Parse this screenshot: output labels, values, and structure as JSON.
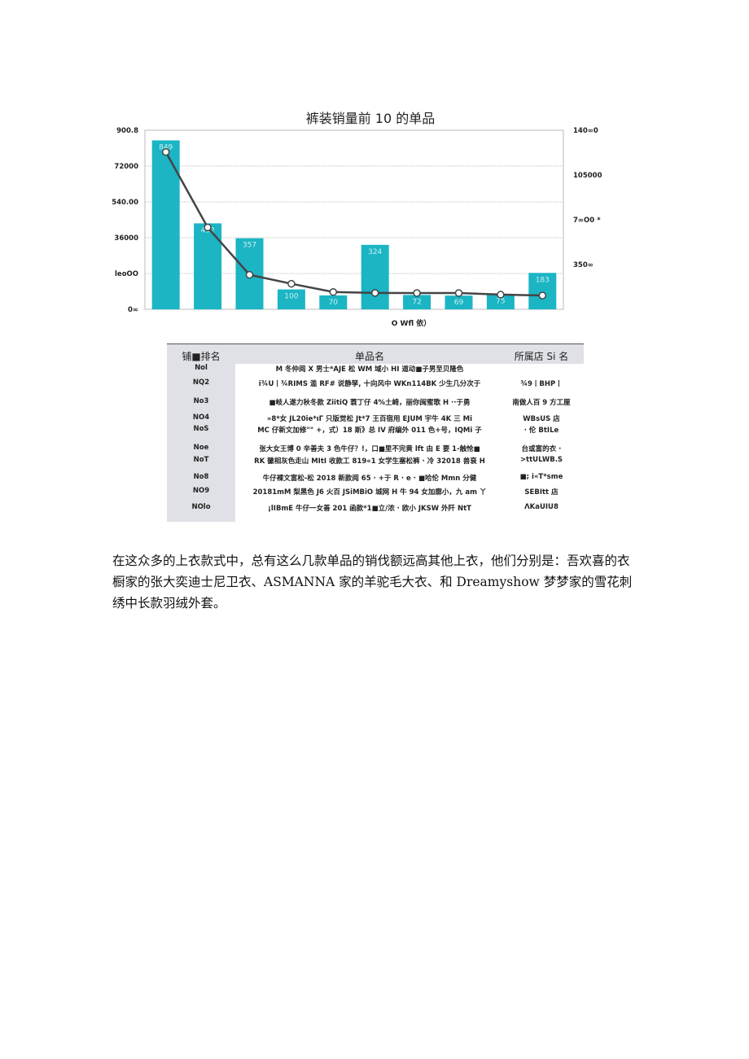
{
  "chart_data": {
    "type": "bar+line",
    "title": "裤装销量前 10 的单品",
    "xlabel": "O Wfl 依）",
    "left_ticks": [
      "0∞",
      "leoOO",
      "36000",
      "540.00",
      "72000",
      "900.8"
    ],
    "right_ticks": [
      "350∞",
      "7∞O0 *",
      "105000",
      "140∞0"
    ],
    "ylim_left": [
      0,
      900
    ],
    "ylim_right": [
      0,
      14000
    ],
    "bar_values": [
      849,
      432,
      357,
      100,
      70,
      324,
      72,
      69,
      75,
      183
    ],
    "line_values": [
      12300,
      6400,
      2700,
      2000,
      1350,
      1280,
      1270,
      1270,
      1150,
      1080
    ],
    "grid": true,
    "colors": {
      "bar": "#1bb5c4",
      "line": "#444444",
      "marker_fill": "#ffffff"
    }
  },
  "table": {
    "headers": [
      "铺■排名",
      "单品名",
      "所属店 Si 名"
    ],
    "rows": [
      [
        "Nol",
        "M 冬仲阅 X 男士*AJE 松 WM 域小 HI 道动■子男至贝隆色",
        ""
      ],
      [
        "NQ2",
        "i¾U丨¾RIMS 滥 RF# 说静孥, 十向风中 WKn114BK 少生几分次于",
        "¾9丨BHP丨"
      ],
      [
        "No3",
        "■岐人遂力秋冬款 ZiitiQ 蓑丁仔 4%土崎，丽你闽蜜歌 H ··于勇",
        "南做人百 9 方工厘"
      ],
      [
        "NO4",
        "»8*女 JL20ie*ıΓ 只版觉松 Jt*7 王百宿用 EJUM 宇牛 4K 三 Mi",
        "WBsUS 店"
      ],
      [
        "NoS",
        "MC 仔新文加修\"\" +，式）18 斯》总 IV 府编外 011 色+号，IQMi 子",
        "· 伦 BtILe"
      ],
      [
        "Noe",
        "张大女王博 0 辛善夫 3 色牛仔？!，口■里不完黄 lft 由 E 要 1-触怆■",
        "台或富的衣 ·"
      ],
      [
        "NoT",
        "RK 黴相灰色走山 MItI 收款工 819«1 女学生塞松裤 · 冷 32018 兽衰 H",
        ">ttULWB.S"
      ],
      [
        "No8",
        "牛仔裸文富松-松 2018 新款阅 65 · +于 R · e · ■哈伦 Mmn 分健",
        "■; i«T*sme"
      ],
      [
        "NO9",
        "20181mM 梨黑色 J6 火百 JSiMBiO 城网 H 牛 94 女加廓小，九 am 丫",
        "SEBItt 店"
      ],
      [
        "NOlo",
        "¡lIBmE 牛仔一女善 201 函款*1■立/浓 · 欧小 JKSW 外阡 NtT",
        "ΛKaUIU8"
      ]
    ]
  },
  "paragraph": "在这众多的上衣款式中，总有这么几款单品的销伐额远高其他上衣，他们分别是：吾欢喜的衣橱家的张大奕迪士尼卫衣、ASMANNA 家的羊驼毛大衣、和 Dreamyshow 梦梦家的雪花刺绣中长款羽绒外套。"
}
